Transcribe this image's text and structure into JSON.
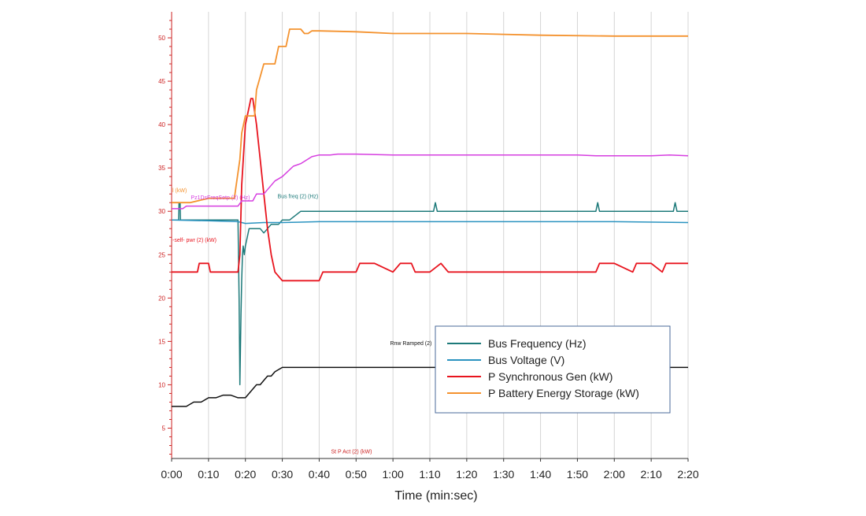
{
  "chart_data": {
    "type": "line",
    "xlabel": "Time (min:sec)",
    "x_ticks": [
      "0:00",
      "0:10",
      "0:20",
      "0:30",
      "0:40",
      "0:50",
      "1:00",
      "1:10",
      "1:20",
      "1:30",
      "1:40",
      "1:50",
      "2:00",
      "2:10",
      "2:20"
    ],
    "xlim": [
      0,
      140
    ],
    "ylim": [
      1.5,
      53
    ],
    "y_ticks": [
      "5",
      "10",
      "15",
      "20",
      "25",
      "30",
      "35",
      "40",
      "45",
      "50"
    ],
    "grid": true,
    "legend_position": "bottom-right",
    "series": [
      {
        "name": "Bus Frequency (Hz)",
        "color": "#1d7a7a",
        "x": [
          0,
          1.9,
          2,
          2.3,
          2.4,
          3,
          10,
          18,
          18.3,
          18.5,
          18.8,
          19,
          19.2,
          19.4,
          19.7,
          20,
          21,
          22,
          23,
          24,
          25,
          26,
          27,
          28,
          29,
          30,
          32,
          35,
          40,
          60,
          71,
          71.5,
          72,
          80,
          90,
          100,
          110,
          115,
          115.5,
          116,
          120,
          125,
          130,
          135,
          136,
          136.5,
          137,
          140
        ],
        "y": [
          29,
          29,
          31,
          31,
          29,
          29,
          29,
          29,
          20,
          10,
          18,
          22,
          25,
          26,
          25,
          26,
          28,
          28,
          28,
          28,
          27.5,
          28,
          28.5,
          28.5,
          28.5,
          29,
          29,
          30,
          30,
          30,
          30,
          31,
          30,
          30,
          30,
          30,
          30,
          30,
          31,
          30,
          30,
          30,
          30,
          30,
          30,
          31,
          30,
          30
        ]
      },
      {
        "name": "Bus Voltage (V)",
        "color": "#2a93c0",
        "x": [
          0,
          10,
          18,
          20,
          25,
          30,
          40,
          60,
          80,
          100,
          120,
          140
        ],
        "y": [
          29,
          28.9,
          28.8,
          28.6,
          28.7,
          28.7,
          28.8,
          28.8,
          28.8,
          28.8,
          28.8,
          28.7
        ]
      },
      {
        "name": "P Synchronous Gen (kW)",
        "color": "#e8141e",
        "x": [
          0,
          7,
          7.5,
          10,
          10.5,
          18,
          18.5,
          19,
          20,
          21,
          21.5,
          22,
          23,
          24,
          25,
          26,
          27,
          28,
          30,
          35,
          40,
          41,
          45,
          50,
          51,
          55,
          60,
          62,
          65,
          66,
          70,
          73,
          75,
          80,
          90,
          100,
          110,
          115,
          116,
          120,
          125,
          126,
          130,
          133,
          134,
          140
        ],
        "y": [
          23,
          23,
          24,
          24,
          23,
          23,
          25,
          33,
          40,
          42,
          43,
          43,
          40,
          36,
          32,
          28,
          25,
          23,
          22,
          22,
          22,
          23,
          23,
          23,
          24,
          24,
          23,
          24,
          24,
          23,
          23,
          24,
          23,
          23,
          23,
          23,
          23,
          23,
          24,
          24,
          23,
          24,
          24,
          23,
          24,
          24
        ]
      },
      {
        "name": "P Battery Energy Storage (kW)",
        "color": "#f4922e",
        "x": [
          0,
          5,
          10,
          17,
          17.5,
          18.5,
          19,
          20,
          21,
          22,
          22.5,
          23,
          25,
          26,
          27,
          28,
          29,
          30,
          31,
          32,
          33,
          34,
          35,
          36,
          37,
          38,
          40,
          50,
          60,
          80,
          100,
          120,
          140
        ],
        "y": [
          31,
          31,
          31.5,
          31.5,
          33,
          36,
          39,
          41,
          41,
          41,
          41,
          44,
          47,
          47,
          47,
          47,
          49,
          49,
          49,
          51,
          51,
          51,
          51,
          50.5,
          50.5,
          50.8,
          50.8,
          50.7,
          50.5,
          50.5,
          50.3,
          50.2,
          50.2
        ]
      },
      {
        "color": "#d63ee0",
        "x": [
          0,
          3,
          4,
          8,
          10,
          18,
          19,
          22,
          23,
          25,
          28,
          30,
          33,
          35,
          38,
          40,
          43,
          45,
          50,
          60,
          80,
          100,
          110,
          115,
          120,
          125,
          130,
          135,
          140
        ],
        "y": [
          30.3,
          30.3,
          30.6,
          30.6,
          30.6,
          30.6,
          31.2,
          31.2,
          32,
          32,
          33.5,
          34,
          35.2,
          35.5,
          36.3,
          36.5,
          36.5,
          36.6,
          36.6,
          36.5,
          36.5,
          36.5,
          36.5,
          36.4,
          36.4,
          36.4,
          36.4,
          36.5,
          36.4
        ]
      },
      {
        "color": "#111111",
        "x": [
          0,
          2,
          4,
          6,
          8,
          10,
          12,
          14,
          16,
          18,
          20,
          21,
          22,
          23,
          24,
          25,
          26,
          27,
          28,
          30,
          32,
          35,
          140
        ],
        "y": [
          7.5,
          7.5,
          7.5,
          8,
          8,
          8.5,
          8.5,
          8.8,
          8.8,
          8.5,
          8.5,
          9,
          9.5,
          10,
          10,
          10.5,
          11,
          11,
          11.5,
          12,
          12,
          12,
          12
        ]
      }
    ],
    "annotations": [
      {
        "text": "l (kW)",
        "x": 0,
        "y": 32.2,
        "color": "#f4922e"
      },
      {
        "text": "Pz1DsFreqSetp (2) (Hz)",
        "x": 5,
        "y": 31.4,
        "color": "#d63ee0"
      },
      {
        "text": "Bus freq (2) (Hz)",
        "x": 28.5,
        "y": 31.5,
        "color": "#1d7a7a"
      },
      {
        "text": "-self- pwr (2) (kW)",
        "x": 0,
        "y": 26.5,
        "color": "#e8141e"
      },
      {
        "text": "Rnw Ramped (2)",
        "x": 59,
        "y": 14.6,
        "color": "#111111"
      },
      {
        "text": "St P Act (2) (kW)",
        "x": 43,
        "y": 2.1,
        "color": "#cc2222"
      }
    ]
  }
}
